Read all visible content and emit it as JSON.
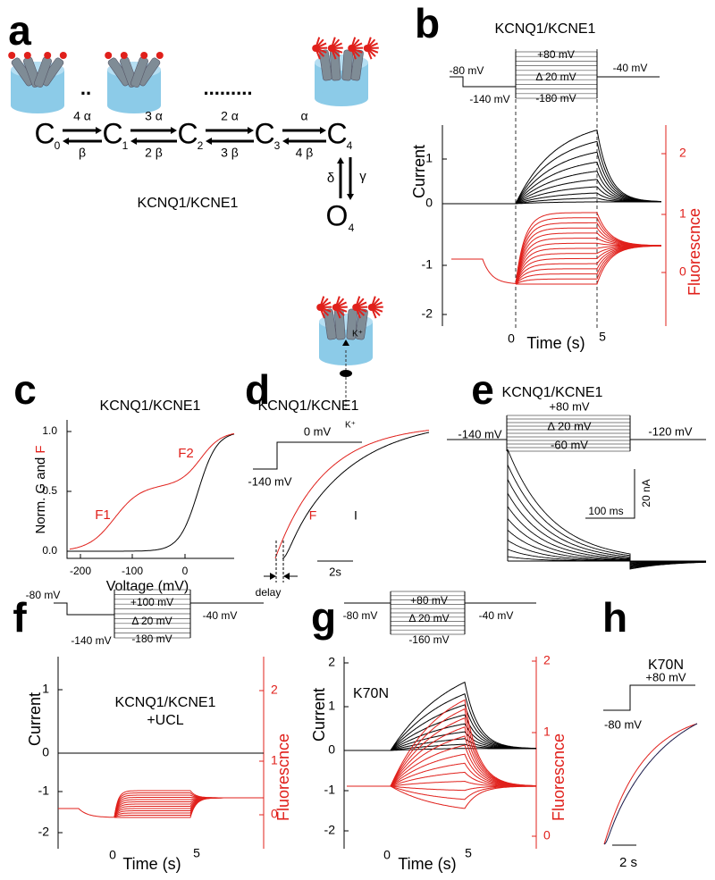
{
  "a": {
    "letter": "a",
    "states": [
      {
        "name": "C",
        "sub": "0"
      },
      {
        "name": "C",
        "sub": "1"
      },
      {
        "name": "C",
        "sub": "2"
      },
      {
        "name": "C",
        "sub": "3"
      },
      {
        "name": "C",
        "sub": "4"
      },
      {
        "name": "O",
        "sub": "4"
      }
    ],
    "forward": [
      "4 α",
      "3 α",
      "2 α",
      "α"
    ],
    "backward": [
      "β",
      "2 β",
      "3 β",
      "4 β"
    ],
    "delta": "δ",
    "gamma": "γ",
    "label": "KCNQ1/KCNE1",
    "dots": [
      "..",
      "........."
    ],
    "ions": [
      "K⁺",
      "K⁺"
    ]
  },
  "b": {
    "letter": "b",
    "title": "KCNQ1/KCNE1",
    "hold": "-80 mV",
    "pre": "-140 mV",
    "top": "+80 mV",
    "step": "Δ 20 mV",
    "bottom": "-180 mV",
    "tail": "-40 mV",
    "ylabel": "Current",
    "y2label": "Fluorescnce",
    "xlabel": "Time (s)",
    "xticks": [
      "0",
      "5"
    ],
    "yticks": [
      "1",
      "0",
      "-1",
      "-2"
    ],
    "y2ticks": [
      "2",
      "1",
      "0"
    ]
  },
  "c": {
    "letter": "c",
    "title": "KCNQ1/KCNE1",
    "ylabel": [
      "Norm. G and ",
      "F"
    ],
    "xlabel": "Voltage (mV)",
    "xticks": [
      "-200",
      "-100",
      "0"
    ],
    "yticks": [
      "1.0",
      "0.5",
      "0.0"
    ],
    "curve_labels": [
      "F1",
      "F2"
    ]
  },
  "d": {
    "letter": "d",
    "title": "KCNQ1/KCNE1",
    "step": "0 mV",
    "hold": "-140 mV",
    "curve_labels": [
      "F",
      "I"
    ],
    "scale": "2s",
    "delay": "delay"
  },
  "e": {
    "letter": "e",
    "title": "KCNQ1/KCNE1",
    "hold": "-140 mV",
    "top": "+80 mV",
    "step": "Δ 20 mV",
    "bottom": "-60 mV",
    "tail": "-120 mV",
    "scale_x": "100 ms",
    "scale_y": "20 nA"
  },
  "f": {
    "letter": "f",
    "hold": "-80 mV",
    "pre": "-140 mV",
    "top": "+100 mV",
    "step": "Δ 20 mV",
    "bottom": "-180 mV",
    "tail": "-40 mV",
    "title": [
      "KCNQ1/KCNE1",
      "+UCL"
    ],
    "ylabel": "Current",
    "y2label": "Fluorescnce",
    "xlabel": "Time (s)",
    "xticks": [
      "0",
      "5"
    ],
    "yticks": [
      "1",
      "0",
      "-1",
      "-2"
    ],
    "y2ticks": [
      "2",
      "1",
      "0"
    ]
  },
  "g": {
    "letter": "g",
    "hold": "-80 mV",
    "top": "+80 mV",
    "step": "Δ 20 mV",
    "bottom": "-160 mV",
    "tail": "-40 mV",
    "title": "K70N",
    "ylabel": "Current",
    "y2label": "Fluorescnce",
    "xlabel": "Time (s)",
    "xticks": [
      "0",
      "5"
    ],
    "yticks": [
      "2",
      "1",
      "0",
      "-1",
      "-2"
    ],
    "y2ticks": [
      "2",
      "1",
      "0"
    ]
  },
  "h": {
    "letter": "h",
    "title": "K70N",
    "top": "+80 mV",
    "hold": "-80 mV",
    "scale": "2 s"
  }
}
